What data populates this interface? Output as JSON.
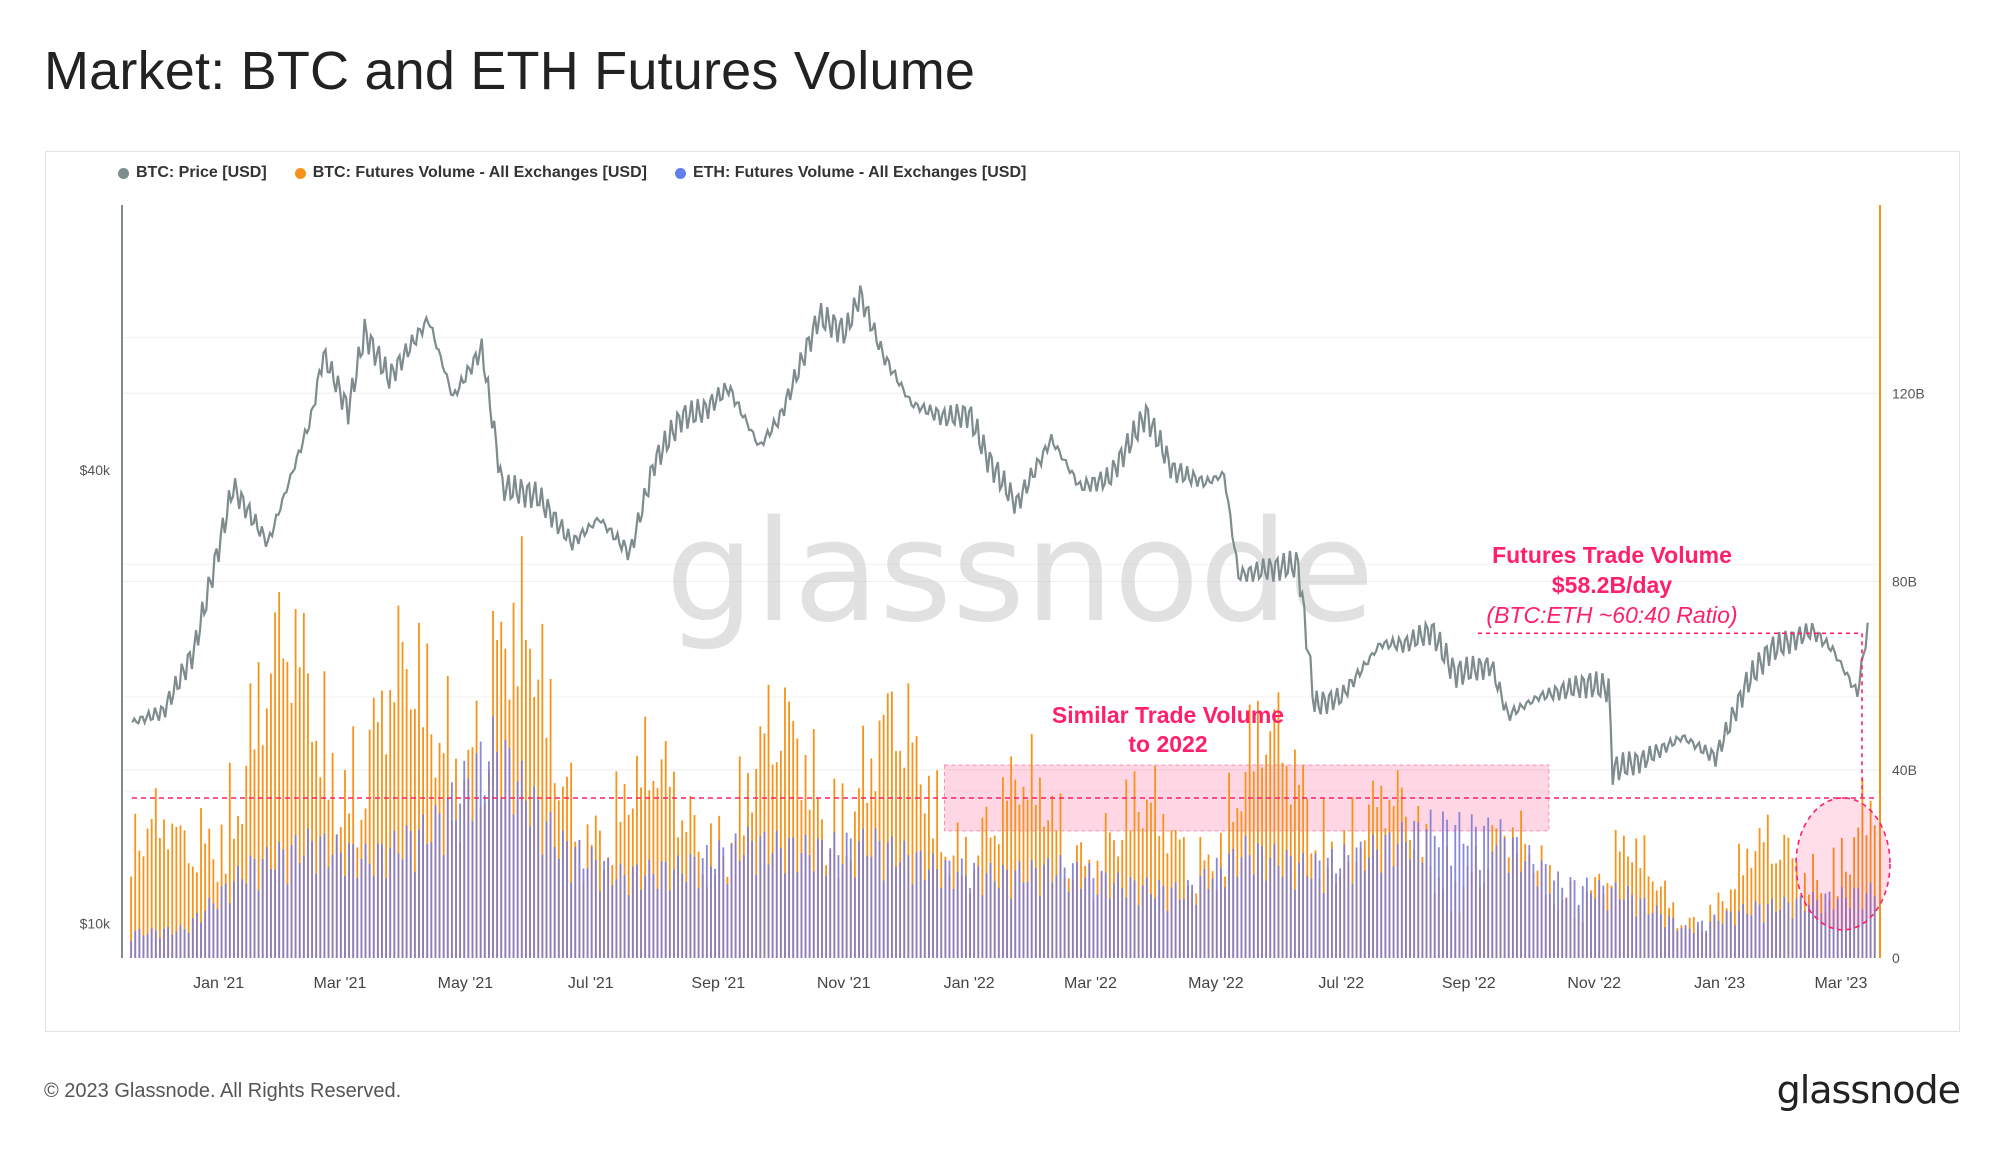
{
  "page": {
    "title": "Market: BTC and ETH Futures Volume",
    "copyright": "© 2023 Glassnode. All Rights Reserved.",
    "logo": "glassnode",
    "watermark": "glassnode"
  },
  "legend": [
    {
      "label": "BTC: Price [USD]",
      "color": "#7f8c8d"
    },
    {
      "label": "BTC: Futures Volume - All Exchanges [USD]",
      "color": "#f7931a"
    },
    {
      "label": "ETH: Futures Volume - All Exchanges [USD]",
      "color": "#627eea"
    }
  ],
  "annotations": {
    "similar_line1": "Similar Trade Volume",
    "similar_line2": "to 2022",
    "futures_line1": "Futures Trade Volume",
    "futures_line2": "$58.2B/day",
    "futures_line3": "(BTC:ETH ~60:40 Ratio)",
    "accent_color": "#ff1f6b"
  },
  "chart_data": {
    "type": "bar",
    "x_ticks": [
      "Jan '21",
      "Mar '21",
      "May '21",
      "Jul '21",
      "Sep '21",
      "Nov '21",
      "Jan '22",
      "Mar '22",
      "May '22",
      "Jul '22",
      "Sep '22",
      "Nov '22",
      "Jan '23",
      "Mar '23"
    ],
    "y_left_scale": "log",
    "y_left_ticks": [
      "$10k",
      "$40k"
    ],
    "y_right_ticks": [
      "0",
      "40B",
      "80B",
      "120B"
    ],
    "y_right_range": [
      0,
      160
    ],
    "series": [
      {
        "name": "BTC: Price [USD]",
        "type": "line",
        "unit": "USD",
        "x": [
          "2020-11-20",
          "2020-12-05",
          "2020-12-20",
          "2021-01-08",
          "2021-01-25",
          "2021-02-15",
          "2021-02-21",
          "2021-03-05",
          "2021-03-13",
          "2021-03-25",
          "2021-04-13",
          "2021-04-25",
          "2021-05-09",
          "2021-05-19",
          "2021-06-05",
          "2021-06-22",
          "2021-07-05",
          "2021-07-20",
          "2021-08-01",
          "2021-08-14",
          "2021-08-25",
          "2021-09-06",
          "2021-09-21",
          "2021-10-01",
          "2021-10-20",
          "2021-11-02",
          "2021-11-09",
          "2021-11-20",
          "2021-12-04",
          "2021-12-20",
          "2022-01-01",
          "2022-01-10",
          "2022-01-24",
          "2022-02-10",
          "2022-02-24",
          "2022-03-10",
          "2022-03-28",
          "2022-04-10",
          "2022-04-26",
          "2022-05-05",
          "2022-05-12",
          "2022-05-25",
          "2022-06-10",
          "2022-06-18",
          "2022-07-01",
          "2022-07-20",
          "2022-08-01",
          "2022-08-14",
          "2022-08-25",
          "2022-09-12",
          "2022-09-20",
          "2022-10-05",
          "2022-10-29",
          "2022-11-08",
          "2022-11-10",
          "2022-11-25",
          "2022-12-14",
          "2022-12-30",
          "2023-01-14",
          "2023-01-25",
          "2023-02-15",
          "2023-02-25",
          "2023-03-09",
          "2023-03-14"
        ],
        "values": [
          18500,
          19100,
          23000,
          38000,
          32000,
          47000,
          57000,
          48000,
          61000,
          53000,
          63500,
          50000,
          58000,
          38000,
          37000,
          32000,
          34500,
          31000,
          41000,
          47000,
          48000,
          51500,
          43000,
          47000,
          64000,
          61000,
          68500,
          57000,
          49000,
          47000,
          47500,
          41500,
          36000,
          44000,
          38000,
          39000,
          47500,
          40000,
          38500,
          39500,
          29000,
          29500,
          30000,
          19500,
          20000,
          23500,
          23500,
          24500,
          21500,
          22000,
          18900,
          20000,
          20800,
          20500,
          16000,
          16500,
          17700,
          16600,
          20800,
          23000,
          24500,
          23100,
          20200,
          24700
        ]
      },
      {
        "name": "BTC: Futures Volume - All Exchanges [USD]",
        "type": "bar",
        "unit": "B USD",
        "x": [
          "2020-11",
          "2020-12",
          "2021-01",
          "2021-02",
          "2021-03",
          "2021-04",
          "2021-05",
          "2021-06",
          "2021-07",
          "2021-08",
          "2021-09",
          "2021-10",
          "2021-11",
          "2021-12",
          "2022-01",
          "2022-02",
          "2022-03",
          "2022-04",
          "2022-05",
          "2022-06",
          "2022-07",
          "2022-08",
          "2022-09",
          "2022-10",
          "2022-11",
          "2022-12",
          "2023-01",
          "2023-02",
          "2023-03"
        ],
        "values": [
          32,
          28,
          66,
          70,
          66,
          62,
          90,
          52,
          44,
          40,
          48,
          54,
          56,
          44,
          38,
          40,
          36,
          32,
          50,
          48,
          36,
          32,
          28,
          22,
          26,
          12,
          24,
          30,
          36
        ]
      },
      {
        "name": "ETH: Futures Volume - All Exchanges [USD]",
        "type": "bar",
        "unit": "B USD",
        "x": [
          "2020-11",
          "2020-12",
          "2021-01",
          "2021-02",
          "2021-03",
          "2021-04",
          "2021-05",
          "2021-06",
          "2021-07",
          "2021-08",
          "2021-09",
          "2021-10",
          "2021-11",
          "2021-12",
          "2022-01",
          "2022-02",
          "2022-03",
          "2022-04",
          "2022-05",
          "2022-06",
          "2022-07",
          "2022-08",
          "2022-09",
          "2022-10",
          "2022-11",
          "2022-12",
          "2023-01",
          "2023-02",
          "2023-03"
        ],
        "values": [
          6,
          7,
          22,
          28,
          24,
          32,
          52,
          28,
          20,
          22,
          28,
          26,
          28,
          22,
          20,
          22,
          18,
          16,
          26,
          22,
          26,
          32,
          30,
          18,
          16,
          7,
          12,
          14,
          16
        ]
      }
    ],
    "highlight_band": {
      "x_start": "2021-12-20",
      "x_end": "2022-10-10",
      "y_low_B": 27,
      "y_high_B": 41
    },
    "reference_line_B": 34,
    "callout_level_B": 69,
    "grid": true,
    "legend_position": "top-left"
  }
}
